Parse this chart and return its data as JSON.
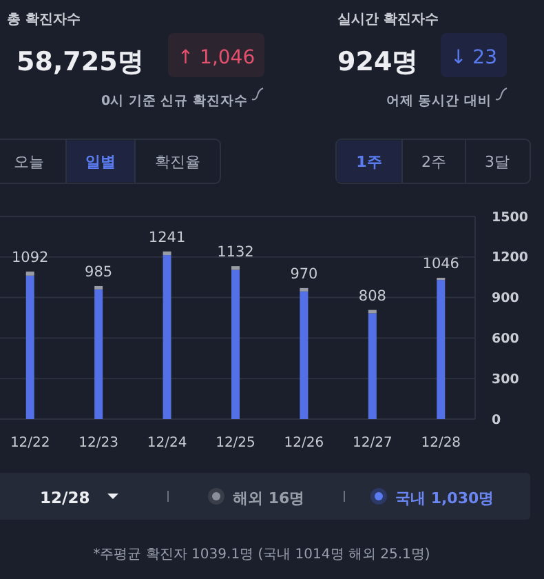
{
  "chart_data": {
    "type": "bar",
    "stacked": true,
    "categories": [
      "12/22",
      "12/23",
      "12/24",
      "12/25",
      "12/26",
      "12/27",
      "12/28"
    ],
    "series": [
      {
        "color": "#5470e6",
        "values": [
          1062,
          960,
          1214,
          1104,
          945,
          783,
          1030
        ]
      },
      {
        "color": "#9a9ca3",
        "values": [
          30,
          25,
          27,
          28,
          25,
          25,
          16
        ]
      }
    ],
    "totals": [
      "1092",
      "985",
      "1241",
      "1132",
      "970",
      "808",
      "1046"
    ],
    "ylim": [
      0,
      1500
    ],
    "yticks": [
      0,
      300,
      600,
      900,
      1200,
      1500
    ],
    "grid": "y",
    "annotations": [
      "총 확진자수",
      "58,725명",
      "↑ 1,046",
      "0시 기준 신규 확진자수",
      "실시간 확진자수",
      "924명",
      "↓ 23",
      "어제 동시간 대비",
      "오늘",
      "일별",
      "확진율",
      "1주",
      "2주",
      "3달",
      "12/28",
      "해외 16명",
      "국내 1,030명",
      "*주평균 확진자 1039.1명 (국내 1014명 해외 25.1명)"
    ]
  }
}
